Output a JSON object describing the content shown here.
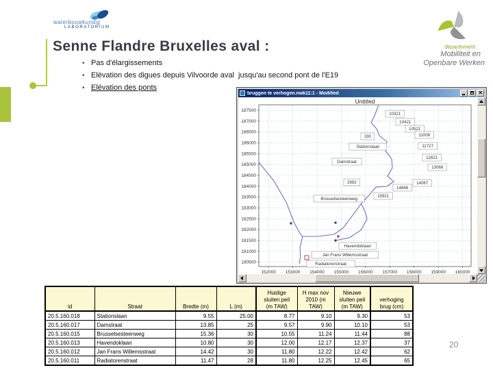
{
  "slide": {
    "title": "Senne Flandre Bruxelles aval :",
    "bullets": [
      {
        "text": "Pas d'élargissements",
        "underline": false
      },
      {
        "text": "Elévation des digues depuis Vilvoorde aval  jusqu'au second pont de l'E19",
        "underline": false
      },
      {
        "text": "Elévation des ponts",
        "underline": true
      }
    ],
    "page_number": "20",
    "logo_left": {
      "line1": "waterbouwkundig",
      "line2": "LABORATORIUM"
    },
    "logo_right": {
      "dept": "departement",
      "line1": "Mobiliteit en",
      "line2": "Openbare Werken"
    }
  },
  "window": {
    "title": "bruggen te verhogen.nwk11:1 - Modified"
  },
  "chart_data": {
    "type": "scatter",
    "title": "Untitled",
    "xlim": [
      151600,
      160350
    ],
    "ylim": [
      180300,
      187750
    ],
    "x_ticks": [
      152000,
      153000,
      154000,
      155000,
      156000,
      157000,
      158000,
      159000,
      160000
    ],
    "y_ticks": [
      187500,
      187000,
      186500,
      186000,
      185500,
      185000,
      184500,
      184000,
      183500,
      183000,
      182500,
      182000,
      181500,
      181000,
      180500
    ],
    "grid": true,
    "grid_color": "#7fd4d4",
    "river_color": "#7070c8",
    "rivers": [
      {
        "name": "senne-main",
        "points": [
          [
            156540,
            187750
          ],
          [
            156370,
            187245
          ],
          [
            156230,
            186930
          ],
          [
            156455,
            186645
          ],
          [
            156570,
            186330
          ],
          [
            156880,
            186045
          ],
          [
            156820,
            185635
          ],
          [
            157075,
            185255
          ],
          [
            157105,
            184845
          ],
          [
            156905,
            184465
          ],
          [
            157160,
            184215
          ],
          [
            156880,
            183995
          ],
          [
            156425,
            183960
          ],
          [
            156115,
            183550
          ],
          [
            155805,
            183175
          ],
          [
            155410,
            182575
          ],
          [
            155070,
            182070
          ],
          [
            154705,
            181785
          ],
          [
            154025,
            181690
          ],
          [
            153405,
            181690
          ],
          [
            153295,
            181185
          ],
          [
            153320,
            180775
          ],
          [
            153265,
            180425
          ]
        ]
      },
      {
        "name": "senne-west-branch",
        "points": [
          [
            151600,
            185100
          ],
          [
            152220,
            184245
          ],
          [
            152730,
            183265
          ],
          [
            153070,
            182290
          ],
          [
            153320,
            181785
          ],
          [
            153405,
            181690
          ]
        ]
      },
      {
        "name": "havendok-branch",
        "points": [
          [
            154760,
            181500
          ],
          [
            155325,
            181625
          ],
          [
            155805,
            181975
          ],
          [
            156060,
            182480
          ],
          [
            156005,
            182760
          ],
          [
            155860,
            183110
          ],
          [
            155805,
            183175
          ]
        ]
      }
    ],
    "bridge_points": [
      {
        "x": 152925,
        "y": 182290,
        "color": "#2233aa",
        "open": false
      },
      {
        "x": 154760,
        "y": 182320,
        "color": "#2233aa",
        "open": false
      },
      {
        "x": 154760,
        "y": 181500,
        "color": "#2233aa",
        "open": false
      },
      {
        "x": 154875,
        "y": 181690,
        "color": "#8b2a6b",
        "open": false
      },
      {
        "x": 153575,
        "y": 180710,
        "color": "#cc4444",
        "open": true
      }
    ],
    "bridge_labels": [
      {
        "text": "10321",
        "x": 156820,
        "y": 187495
      },
      {
        "text": "10421",
        "x": 157245,
        "y": 187120
      },
      {
        "text": "10521",
        "x": 157640,
        "y": 186805
      },
      {
        "text": "11006",
        "x": 158035,
        "y": 186520
      },
      {
        "text": "11727",
        "x": 158175,
        "y": 186015
      },
      {
        "text": "12621",
        "x": 158345,
        "y": 185475
      },
      {
        "text": "13068",
        "x": 158570,
        "y": 185035
      },
      {
        "text": "14067",
        "x": 157950,
        "y": 184310
      },
      {
        "text": "14868",
        "x": 157130,
        "y": 184090
      },
      {
        "text": "15921",
        "x": 156340,
        "y": 183710
      },
      {
        "text": "330",
        "x": 155805,
        "y": 186455
      },
      {
        "text": "Stationslaan",
        "x": 155325,
        "y": 185980
      },
      {
        "text": "Damstraat",
        "x": 154620,
        "y": 185290
      },
      {
        "text": "2892",
        "x": 155100,
        "y": 184340
      },
      {
        "text": "Brusselsesteenweg",
        "x": 153860,
        "y": 183585
      },
      {
        "text": "Havendoklaan",
        "x": 154900,
        "y": 181405
      },
      {
        "text": "Jan Frans Willemsstraat",
        "x": 153775,
        "y": 180995
      },
      {
        "text": "Radiatorenstraat",
        "x": 153575,
        "y": 180585
      }
    ]
  },
  "table": {
    "headers": [
      "id",
      "Straat",
      "Bredte (m)",
      "L (m)",
      "Huidige\nsluiten peil\n(m TAW)",
      "H max nov\n2010 (m\nTAW)",
      "Nieuwe\nsluiten peil\n(m TAW)",
      "verhoging\nbrug (cm)"
    ],
    "rows": [
      [
        "20.5.160.018",
        "Stationslaan",
        "9.55",
        "25.00",
        "8.77",
        "9.10",
        "9.30",
        "53"
      ],
      [
        "20.5.160.017",
        "Damstraat",
        "13.85",
        "25",
        "9.57",
        "9.90",
        "10.10",
        "53"
      ],
      [
        "20.5.160.015",
        "Brusselsesteenweg",
        "15.36",
        "30",
        "10.55",
        "11.24",
        "11.44",
        "88"
      ],
      [
        "20.5.160.013",
        "Havendoklaan",
        "10.80",
        "30",
        "12.00",
        "12.17",
        "12.37",
        "37"
      ],
      [
        "20.5.160.012",
        "Jan Frans Willemsstraat",
        "14.42",
        "30",
        "11.80",
        "12.22",
        "12.42",
        "62"
      ],
      [
        "20.5.160.011",
        "Radiatorenstraat",
        "11.47",
        "28",
        "11.80",
        "12.25",
        "12.45",
        "65"
      ]
    ]
  }
}
